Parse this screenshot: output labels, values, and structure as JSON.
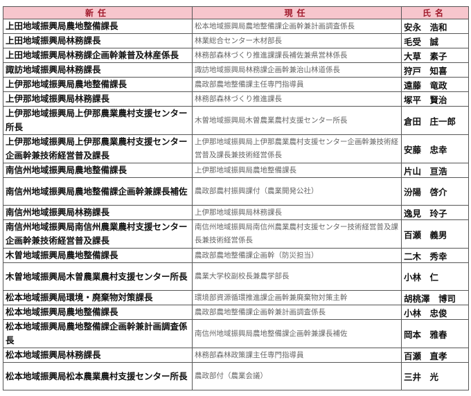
{
  "headers": {
    "new": "新任",
    "current": "現任",
    "name": "氏名"
  },
  "header_color": "#f7c6cd",
  "rows": [
    {
      "new": "上田地域振興局農地整備課長",
      "current": "松本地域振興局農地整備課企画幹兼計画調査係長",
      "name": "安永　浩和"
    },
    {
      "new": "上田地域振興局林務課長",
      "current": "林業総合センター木材部長",
      "name": "毛受　誠"
    },
    {
      "new": "上田地域振興局林務課企画幹兼普及林産係長",
      "current": "林務部森林づくり推進課課長補佐兼県営林係長",
      "name": "大草　素子"
    },
    {
      "new": "諏訪地域振興局林務課長",
      "current": "諏訪地域振興局林務課企画幹兼治山林道係長",
      "name": "狩戸　知喜"
    },
    {
      "new": "上伊那地域振興局農地整備課長",
      "current": "農政部農地整備課主任専門指導員",
      "name": "遠藤　竜政"
    },
    {
      "new": "上伊那地域振興局林務課長",
      "current": "林務部森林づくり推進課長",
      "name": "塚平　賢治"
    },
    {
      "new": "上伊那地域振興局上伊那農業農村支援センター所長",
      "current": "木曽地域振興局木曽農業農村支援センター所長",
      "name": "倉田　庄一郎"
    },
    {
      "new": "上伊那地域振興局上伊那農業農村支援センター企画幹兼技術経営普及課長",
      "current": "上伊那地域振興局上伊那農業農村支援センター企画幹兼技術経営普及課長兼技術経営係長",
      "name": "安藤　忠幸"
    },
    {
      "new": "南信州地域振興局農地整備課長",
      "current": "上伊那地域振興局農地整備課長",
      "name": "片山　亘浩"
    },
    {
      "new": "南信州地域振興局農地整備課企画幹兼課長補佐",
      "current": "農政部農村振興課付（農業開発公社）",
      "name": "汾陽　啓介"
    },
    {
      "new": "南信州地域振興局林務課長",
      "current": "上伊那地域振興局林務課長",
      "name": "逸見　玲子"
    },
    {
      "new": "南信州地域振興局南信州農業農村支援センター企画幹兼技術経営普及課長",
      "current": "南信州地域振興局南信州農業農村支援センター技術経営普及課長兼技術経営係長",
      "name": "百瀬　義男"
    },
    {
      "new": "木曽地域振興局農地整備課長",
      "current": "農政部農地整備課企画幹（防災担当）",
      "name": "二木　秀幸"
    },
    {
      "new": "木曽地域振興局木曽農業農村支援センター所長",
      "current": "農業大学校副校長兼農学部長",
      "name": "小林　仁"
    },
    {
      "new": "松本地域振興局環境・廃棄物対策課長",
      "current": "環境部資源循環推進課企画幹兼廃棄物対策主幹",
      "name": "胡桃澤　博司"
    },
    {
      "new": "松本地域振興局農地整備課長",
      "current": "農政部農地整備課企画幹兼計画調査係長",
      "name": "小林　忠俊"
    },
    {
      "new": "松本地域振興局農地整備課企画幹兼計画調査係長",
      "current": "南信州地域振興局農地整備課企画幹兼課長補佐",
      "name": "岡本　雅春"
    },
    {
      "new": "松本地域振興局林務課長",
      "current": "林務部森林政策課主任専門指導員",
      "name": "百瀬　直孝"
    },
    {
      "new": "松本地域振興局松本農業農村支援センター所長",
      "current": "農政部付（農業会議）",
      "name": "三井　光"
    }
  ]
}
